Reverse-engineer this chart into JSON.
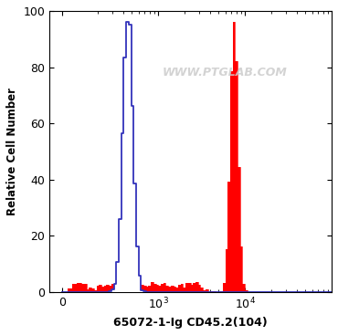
{
  "title": "",
  "xlabel": "65072-1-Ig CD45.2(104)",
  "ylabel": "Relative Cell Number",
  "ylim": [
    0,
    100
  ],
  "yticks": [
    0,
    20,
    40,
    60,
    80,
    100
  ],
  "watermark": "WWW.PTGLAB.COM",
  "background_color": "#ffffff",
  "plot_bg_color": "#ffffff",
  "blue_color": "#3333bb",
  "red_color": "#ff0000",
  "blue_fill_color": "#ffffff",
  "symlog_linthresh": 150,
  "symlog_linscale": 0.25
}
